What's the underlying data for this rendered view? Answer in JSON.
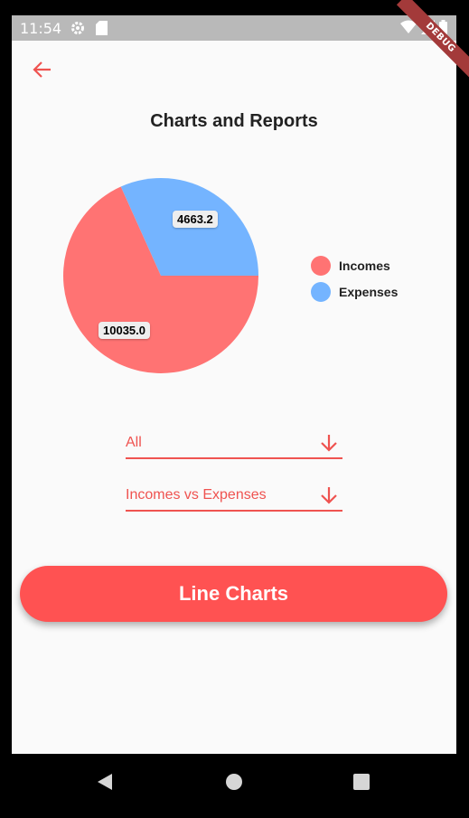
{
  "status_bar": {
    "time": "11:54",
    "icons": [
      "settings-icon",
      "sd-card-icon",
      "wifi-icon",
      "signal-icon",
      "battery-icon"
    ]
  },
  "debug_banner": "DEBUG",
  "header": {
    "back_icon": "arrow-left-icon",
    "title": "Charts and Reports"
  },
  "colors": {
    "accent": "#ef5350",
    "button": "#ff5252",
    "incomes": "#ff7373",
    "expenses": "#74b4ff"
  },
  "chart_data": {
    "type": "pie",
    "slices": [
      {
        "name": "Incomes",
        "value": 10035.0,
        "label": "10035.0",
        "color": "#ff7373"
      },
      {
        "name": "Expenses",
        "value": 4663.2,
        "label": "4663.2",
        "color": "#74b4ff"
      }
    ],
    "legend": [
      "Incomes",
      "Expenses"
    ],
    "legend_position": "right"
  },
  "filters": {
    "period": {
      "value": "All",
      "icon": "arrow-down-icon"
    },
    "report": {
      "value": "Incomes vs Expenses",
      "icon": "arrow-down-icon"
    }
  },
  "actions": {
    "line_charts_label": "Line Charts"
  },
  "nav_bar": {
    "icons": [
      "back-triangle-icon",
      "home-circle-icon",
      "recents-square-icon"
    ]
  }
}
